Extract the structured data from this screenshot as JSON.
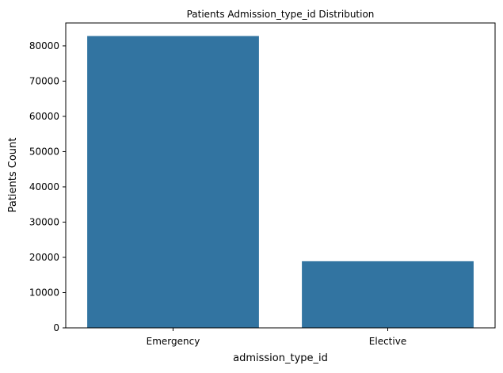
{
  "chart_data": {
    "type": "bar",
    "title": "Patients Admission_type_id Distribution",
    "xlabel": "admission_type_id",
    "ylabel": "Patients Count",
    "categories": [
      "Emergency",
      "Elective"
    ],
    "values": [
      82800,
      18900
    ],
    "ylim": [
      0,
      86500
    ],
    "yticks": [
      0,
      10000,
      20000,
      30000,
      40000,
      50000,
      60000,
      70000,
      80000
    ],
    "grid": false,
    "bar_color": "#3274a1"
  }
}
